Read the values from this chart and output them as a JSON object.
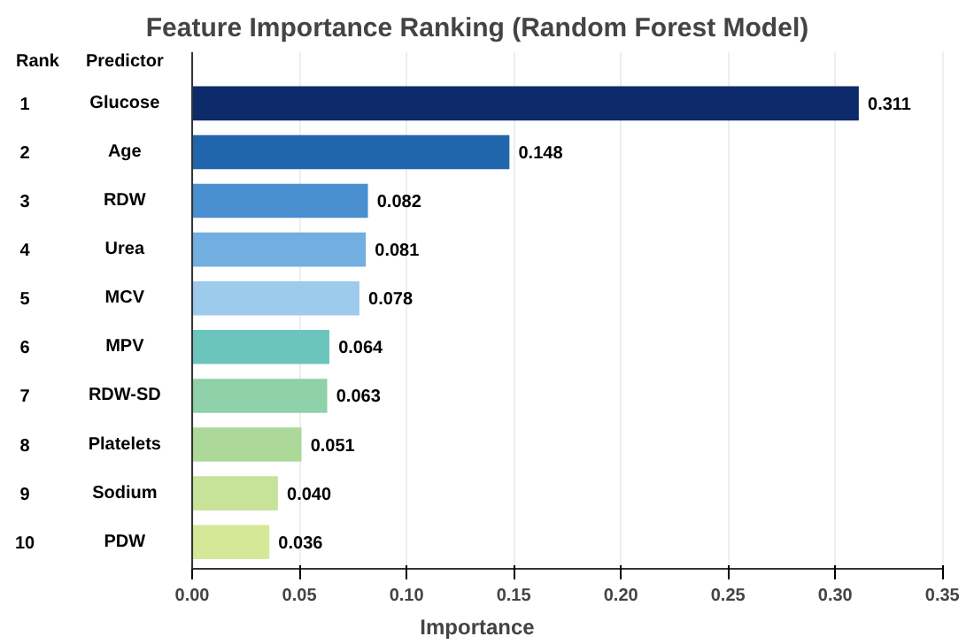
{
  "chart_data": {
    "type": "bar",
    "orientation": "horizontal",
    "title": "Feature Importance Ranking (Random Forest Model)",
    "xlabel": "Importance",
    "categories": [
      "Glucose",
      "Age",
      "RDW",
      "Urea",
      "MCV",
      "MPV",
      "RDW-SD",
      "Platelets",
      "Sodium",
      "PDW"
    ],
    "values": [
      0.311,
      0.148,
      0.082,
      0.081,
      0.078,
      0.064,
      0.063,
      0.051,
      0.04,
      0.036
    ],
    "colors": [
      "#0d2a6b",
      "#2166ac",
      "#4a90d0",
      "#72aee0",
      "#9ccbeb",
      "#6cc5bc",
      "#8fd1a8",
      "#acd99a",
      "#c7e39a",
      "#d4e898"
    ],
    "value_labels": [
      "0.311",
      "0.148",
      "0.082",
      "0.081",
      "0.078",
      "0.064",
      "0.063",
      "0.051",
      "0.040",
      "0.036"
    ],
    "xlim": [
      0,
      0.35
    ],
    "xticks": [
      {
        "value": 0,
        "label": "0.00"
      },
      0.05,
      {
        "value": 0.1,
        "label": "0.10"
      },
      0.15,
      {
        "value": 0.2,
        "label": "0.20"
      },
      0.25,
      {
        "value": 0.3,
        "label": "0.30"
      },
      0.35
    ],
    "grid": "x",
    "annotations": [
      "Rank",
      "Predictor",
      "1",
      "2",
      "3",
      "4",
      "5",
      "6",
      "7",
      "8",
      "9",
      "10"
    ]
  }
}
